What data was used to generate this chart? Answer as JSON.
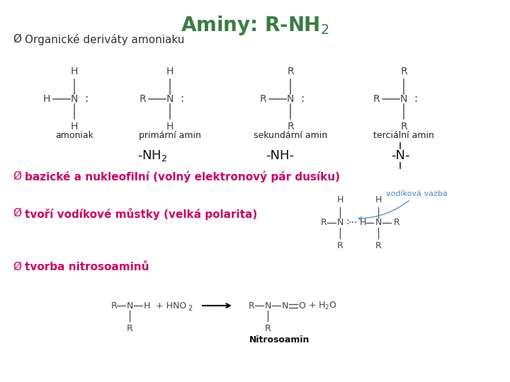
{
  "title_color": "#3a7d44",
  "bg_color": "#ffffff",
  "bullet_color_black": "#333333",
  "bullet2_color": "#cc0066",
  "bullet3_color": "#cc0066",
  "bullet4_color": "#cc0066",
  "text_color_blue": "#4488cc",
  "struct_labels": [
    "amoniak",
    "primární amin",
    "sekundární amin",
    "terciální amin"
  ],
  "bullet1": "Organické deriváty amoniaku",
  "bullet2_main": "bazické a nukleofilní (volný elektronový pár dusíku)",
  "bullet3_main": "tvoří vodíkové můstky (velká polarita)",
  "bullet4_main": "tvorba nitrosoaminů",
  "vodikova_vazba_label": "vodíková vazba",
  "nitrosoamin_label": "Nitrosoamin"
}
